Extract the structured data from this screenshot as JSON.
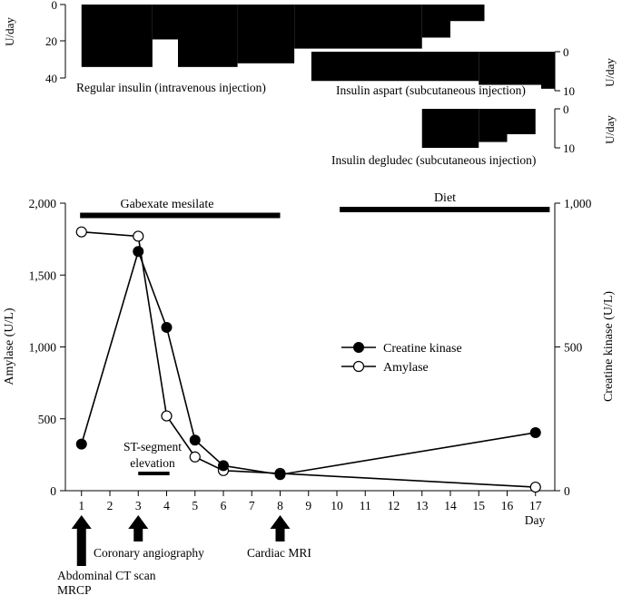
{
  "panels": {
    "regular_insulin": {
      "ylabel": "U/day",
      "yticks": [
        "0",
        "20",
        "40"
      ],
      "label": "Regular insulin (intravenous injection)",
      "ylim": [
        0,
        40
      ],
      "segments": [
        {
          "day_start": 1,
          "day_end": 3.5,
          "dose": 34
        },
        {
          "day_start": 3.5,
          "day_end": 4.4,
          "dose": 19
        },
        {
          "day_start": 4.4,
          "day_end": 6.5,
          "dose": 34
        },
        {
          "day_start": 6.5,
          "day_end": 8.5,
          "dose": 32
        },
        {
          "day_start": 8.5,
          "day_end": 13.0,
          "dose": 24
        },
        {
          "day_start": 13.0,
          "day_end": 14.0,
          "dose": 18
        },
        {
          "day_start": 14.0,
          "day_end": 15.2,
          "dose": 9
        }
      ]
    },
    "insulin_aspart": {
      "ylabel": "U/day",
      "yticks": [
        "0",
        "10"
      ],
      "label": "Insulin aspart (subcutaneous injection)",
      "ylim": [
        0,
        10
      ],
      "segments": [
        {
          "day_start": 9.1,
          "day_end": 15.0,
          "dose": 7.5
        },
        {
          "day_start": 15.0,
          "day_end": 17.2,
          "dose": 8.5
        },
        {
          "day_start": 17.2,
          "day_end": 18.2,
          "dose": 9.5
        }
      ]
    },
    "insulin_degludec": {
      "ylabel": "U/day",
      "yticks": [
        "0",
        "10"
      ],
      "label": "Insulin degludec (subcutaneous injection)",
      "ylim": [
        0,
        10
      ],
      "segments": [
        {
          "day_start": 13.0,
          "day_end": 15.0,
          "dose": 10
        },
        {
          "day_start": 15.0,
          "day_end": 16.0,
          "dose": 8.5
        },
        {
          "day_start": 16.0,
          "day_end": 17.0,
          "dose": 6.5
        }
      ]
    }
  },
  "chart_data": {
    "type": "line",
    "xlabel": "Day",
    "x": [
      1,
      3,
      4,
      5,
      6,
      8,
      17
    ],
    "xticks": [
      "1",
      "2",
      "3",
      "4",
      "5",
      "6",
      "7",
      "8",
      "9",
      "10",
      "11",
      "12",
      "13",
      "14",
      "15",
      "16",
      "17"
    ],
    "ylabel_left": "Amylase (U/L)",
    "ylim_left": [
      0,
      2000
    ],
    "yticks_left": [
      "0",
      "500",
      "1,000",
      "1,500",
      "2,000"
    ],
    "ylabel_right": "Creatine kinase (U/L)",
    "ylim_right": [
      0,
      1000
    ],
    "yticks_right": [
      "0",
      "500",
      "1,000"
    ],
    "legend_position": "right",
    "series": [
      {
        "name": "Creatine kinase",
        "axis": "right",
        "marker": "filled-circle",
        "x": [
          1,
          3,
          4,
          5,
          6,
          8,
          17
        ],
        "values": [
          162,
          832,
          568,
          176,
          87,
          56,
          202
        ]
      },
      {
        "name": "Amylase",
        "axis": "left",
        "marker": "open-circle",
        "x": [
          1,
          3,
          4,
          5,
          6,
          8,
          17
        ],
        "values": [
          1800,
          1770,
          520,
          235,
          140,
          120,
          25
        ]
      }
    ],
    "treatment_bars": [
      {
        "label": "Gabexate mesilate",
        "day_start": 0.95,
        "day_end": 8.0
      },
      {
        "label": "Diet",
        "day_start": 10.1,
        "day_end": 17.5
      }
    ],
    "annotations": [
      {
        "label": "ST-segment elevation",
        "day_start": 3.0,
        "day_end": 4.1
      }
    ],
    "events": [
      {
        "day": 1,
        "lines": [
          "Abdominal CT scan",
          "MRCP"
        ]
      },
      {
        "day": 3,
        "lines": [
          "Coronary angiography"
        ]
      },
      {
        "day": 8,
        "lines": [
          "Cardiac MRI"
        ]
      }
    ]
  }
}
